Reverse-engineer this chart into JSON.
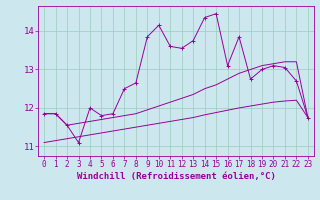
{
  "xlabel": "Windchill (Refroidissement éolien,°C)",
  "bg_color": "#cce8ee",
  "line_color": "#990099",
  "grid_color": "#99ccbb",
  "hours": [
    0,
    1,
    2,
    3,
    4,
    5,
    6,
    7,
    8,
    9,
    10,
    11,
    12,
    13,
    14,
    15,
    16,
    17,
    18,
    19,
    20,
    21,
    22,
    23
  ],
  "temp": [
    11.85,
    11.85,
    11.55,
    11.1,
    12.0,
    11.8,
    11.85,
    12.5,
    12.65,
    13.85,
    14.15,
    13.6,
    13.55,
    13.75,
    14.35,
    14.45,
    13.1,
    13.85,
    12.75,
    13.0,
    13.1,
    13.05,
    12.7,
    11.75
  ],
  "line_upper": [
    11.85,
    11.85,
    11.55,
    11.6,
    11.65,
    11.7,
    11.75,
    11.8,
    11.85,
    11.95,
    12.05,
    12.15,
    12.25,
    12.35,
    12.5,
    12.6,
    12.75,
    12.9,
    13.0,
    13.1,
    13.15,
    13.2,
    13.2,
    11.75
  ],
  "line_lower": [
    11.1,
    11.15,
    11.2,
    11.25,
    11.3,
    11.35,
    11.4,
    11.45,
    11.5,
    11.55,
    11.6,
    11.65,
    11.7,
    11.75,
    11.82,
    11.88,
    11.94,
    12.0,
    12.05,
    12.1,
    12.15,
    12.18,
    12.2,
    11.75
  ],
  "xlim": [
    -0.5,
    23.5
  ],
  "ylim": [
    10.75,
    14.65
  ],
  "yticks": [
    11,
    12,
    13,
    14
  ],
  "xticks": [
    0,
    1,
    2,
    3,
    4,
    5,
    6,
    7,
    8,
    9,
    10,
    11,
    12,
    13,
    14,
    15,
    16,
    17,
    18,
    19,
    20,
    21,
    22,
    23
  ],
  "tick_fontsize": 5.5,
  "xlabel_fontsize": 6.5
}
